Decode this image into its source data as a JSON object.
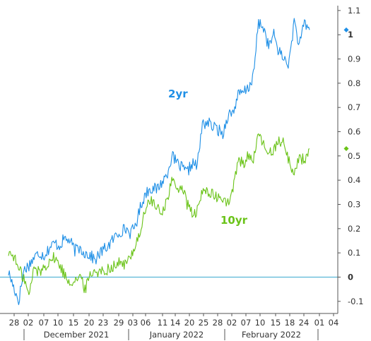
{
  "chart_data": {
    "type": "line",
    "title": "",
    "xlabel": "",
    "ylabel": "",
    "ylim": [
      -0.15,
      1.12
    ],
    "yticks": [
      -0.1,
      0,
      0.1,
      0.2,
      0.3,
      0.4,
      0.5,
      0.6,
      0.7,
      0.8,
      0.9,
      1,
      1.1
    ],
    "ytick_labels": [
      "-0.1",
      "0",
      "0.1",
      "0.2",
      "0.3",
      "0.4",
      "0.5",
      "0.6",
      "0.7",
      "0.8",
      "0.9",
      "1",
      "1.1"
    ],
    "bold_tick_labels": [
      "0",
      "1"
    ],
    "x_day_labels": [
      "28",
      "02",
      "07",
      "10",
      "15",
      "20",
      "23",
      "29",
      "03",
      "06",
      "11",
      "14",
      "20",
      "25",
      "28",
      "02",
      "07",
      "10",
      "15",
      "18",
      "24",
      "01",
      "04"
    ],
    "month_labels": [
      "December 2021",
      "January 2022",
      "February 2022"
    ],
    "baseline": 0,
    "grid": false,
    "colors": {
      "2yr": "#1e8fe6",
      "10yr": "#6ac318",
      "baseline": "#3aa9cf",
      "axis": "#555555"
    },
    "series": [
      {
        "name": "2yr",
        "last_value": 1.02,
        "y": [
          0.02,
          -0.04,
          -0.1,
          0.03,
          0.05,
          0.08,
          0.1,
          0.09,
          0.12,
          0.14,
          0.13,
          0.16,
          0.15,
          0.11,
          0.12,
          0.1,
          0.09,
          0.07,
          0.1,
          0.12,
          0.14,
          0.17,
          0.19,
          0.2,
          0.18,
          0.22,
          0.3,
          0.35,
          0.37,
          0.36,
          0.39,
          0.42,
          0.5,
          0.47,
          0.45,
          0.43,
          0.47,
          0.46,
          0.63,
          0.64,
          0.62,
          0.61,
          0.59,
          0.67,
          0.68,
          0.75,
          0.76,
          0.78,
          0.83,
          1.05,
          1.03,
          0.95,
          1.0,
          0.93,
          0.9,
          0.88,
          1.06,
          0.95,
          1.05,
          1.02
        ]
      },
      {
        "name": "10yr",
        "last_value": 0.53,
        "y": [
          0.1,
          0.09,
          0.03,
          0.0,
          -0.08,
          0.04,
          0.02,
          0.04,
          0.07,
          0.08,
          0.05,
          0.01,
          -0.02,
          -0.01,
          0.0,
          -0.05,
          0.01,
          0.03,
          0.02,
          0.03,
          0.04,
          0.05,
          0.06,
          0.05,
          0.09,
          0.14,
          0.2,
          0.29,
          0.32,
          0.28,
          0.27,
          0.31,
          0.4,
          0.36,
          0.38,
          0.3,
          0.26,
          0.27,
          0.35,
          0.36,
          0.34,
          0.32,
          0.33,
          0.3,
          0.36,
          0.48,
          0.47,
          0.5,
          0.49,
          0.58,
          0.55,
          0.5,
          0.53,
          0.57,
          0.55,
          0.48,
          0.42,
          0.5,
          0.48,
          0.53
        ]
      }
    ]
  }
}
